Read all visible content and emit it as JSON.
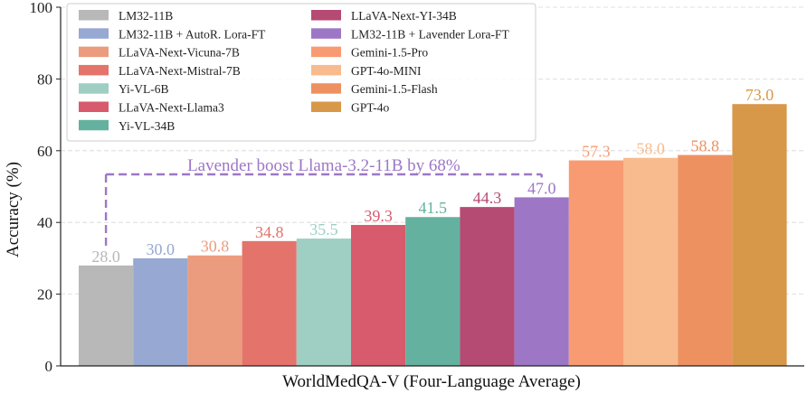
{
  "chart_data": {
    "type": "bar",
    "xlabel": "WorldMedQA-V (Four-Language Average)",
    "ylabel": "Accuracy (%)",
    "ylim": [
      0,
      100
    ],
    "yticks": [
      0,
      20,
      40,
      60,
      80,
      100
    ],
    "grid": true,
    "legend_placement": "top-left",
    "bars": [
      {
        "name": "LM32-11B",
        "value": 28.0,
        "label": "28.0",
        "color": "#b8b8b8"
      },
      {
        "name": "LM32-11B + AutoR. Lora-FT",
        "value": 30.0,
        "label": "30.0",
        "color": "#97a8d2"
      },
      {
        "name": "LLaVA-Next-Vicuna-7B",
        "value": 30.8,
        "label": "30.8",
        "color": "#ec9c7e"
      },
      {
        "name": "LLaVA-Next-Mistral-7B",
        "value": 34.8,
        "label": "34.8",
        "color": "#e4736b"
      },
      {
        "name": "Yi-VL-6B",
        "value": 35.5,
        "label": "35.5",
        "color": "#9ecfc2"
      },
      {
        "name": "LLaVA-Next-Llama3",
        "value": 39.3,
        "label": "39.3",
        "color": "#d75b6d"
      },
      {
        "name": "Yi-VL-34B",
        "value": 41.5,
        "label": "41.5",
        "color": "#64b19f"
      },
      {
        "name": "LLaVA-Next-YI-34B",
        "value": 44.3,
        "label": "44.3",
        "color": "#b54a73"
      },
      {
        "name": "LM32-11B + Lavender Lora-FT",
        "value": 47.0,
        "label": "47.0",
        "color": "#9d77c6"
      },
      {
        "name": "Gemini-1.5-Pro",
        "value": 57.3,
        "label": "57.3",
        "color": "#f89b72"
      },
      {
        "name": "GPT-4o-MINI",
        "value": 58.0,
        "label": "58.0",
        "color": "#f8bb8d"
      },
      {
        "name": "Gemini-1.5-Flash",
        "value": 58.8,
        "label": "58.8",
        "color": "#ee9161"
      },
      {
        "name": "GPT-4o",
        "value": 73.0,
        "label": "73.0",
        "color": "#d8984a"
      }
    ],
    "legend_column_1": [
      "LM32-11B",
      "LM32-11B + AutoR. Lora-FT",
      "LLaVA-Next-Vicuna-7B",
      "LLaVA-Next-Mistral-7B",
      "Yi-VL-6B",
      "LLaVA-Next-Llama3",
      "Yi-VL-34B"
    ],
    "legend_column_2": [
      "LLaVA-Next-YI-34B",
      "LM32-11B + Lavender Lora-FT",
      "Gemini-1.5-Pro",
      "GPT-4o-MINI",
      "Gemini-1.5-Flash",
      "GPT-4o"
    ],
    "annotation": {
      "text": "Lavender boost Llama-3.2-11B by 68%",
      "from_bar": "LM32-11B",
      "to_bar": "LM32-11B + Lavender Lora-FT",
      "color": "#9d77c6"
    }
  }
}
